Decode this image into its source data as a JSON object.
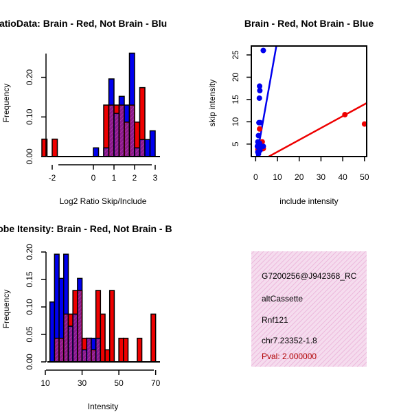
{
  "colors": {
    "red": "#ee0000",
    "blue": "#0000ee",
    "purple": "#8a1a8a",
    "info_bg": "#f5dcee",
    "pval": "#b00000"
  },
  "chart_data": [
    {
      "id": "ratio",
      "type": "bar",
      "title": "RatioData: Brain - Red, Not Brain - Blu",
      "xlabel": "Log2 Ratio Skip/Include",
      "ylabel": "Frequency",
      "xlim": [
        -2.6,
        3.3
      ],
      "ylim": [
        0,
        0.26
      ],
      "xticks": [
        "-2",
        "0",
        "1",
        "2",
        "3"
      ],
      "xtick_values": [
        -2,
        0,
        1,
        2,
        3
      ],
      "yticks": [
        "0.00",
        "0.10",
        "0.20"
      ],
      "ytick_values": [
        0,
        0.1,
        0.2
      ],
      "bin_width": 0.25,
      "series": [
        {
          "name": "Brain",
          "color": "red",
          "bins": [
            [
              -2.5,
              0.044
            ],
            [
              -2.0,
              0.044
            ],
            [
              0.5,
              0.13
            ],
            [
              0.75,
              0.13
            ],
            [
              1.0,
              0.13
            ],
            [
              1.25,
              0.13
            ],
            [
              1.5,
              0.087
            ],
            [
              1.75,
              0.13
            ],
            [
              2.0,
              0.087
            ],
            [
              2.25,
              0.174
            ]
          ]
        },
        {
          "name": "Not Brain",
          "color": "blue",
          "bins": [
            [
              0.0,
              0.022
            ],
            [
              0.5,
              0.022
            ],
            [
              0.75,
              0.196
            ],
            [
              1.0,
              0.109
            ],
            [
              1.25,
              0.152
            ],
            [
              1.5,
              0.13
            ],
            [
              1.75,
              0.261
            ],
            [
              2.0,
              0.022
            ],
            [
              2.25,
              0.043
            ],
            [
              2.5,
              0.043
            ],
            [
              2.75,
              0.065
            ]
          ]
        }
      ]
    },
    {
      "id": "scatter",
      "type": "scatter",
      "title": "Brain - Red, Not Brain - Blue",
      "xlabel": "include intensity",
      "ylabel": "skip intensity",
      "xlim": [
        -2,
        51
      ],
      "ylim": [
        2.2,
        27
      ],
      "xticks": [
        "0",
        "10",
        "20",
        "30",
        "40",
        "50"
      ],
      "xtick_values": [
        0,
        10,
        20,
        30,
        40,
        50
      ],
      "yticks": [
        "5",
        "10",
        "15",
        "20",
        "25"
      ],
      "ytick_values": [
        5,
        10,
        15,
        20,
        25
      ],
      "series": [
        {
          "name": "Brain",
          "color": "red",
          "points": [
            [
              50,
              9.5
            ],
            [
              41,
              11.6
            ],
            [
              1.8,
              8.4
            ],
            [
              3,
              5.5
            ],
            [
              2,
              4.8
            ],
            [
              1.5,
              4.2
            ],
            [
              2.5,
              4.5
            ],
            [
              1,
              3.8
            ],
            [
              3.5,
              4.0
            ]
          ],
          "fit": [
            [
              6,
              2.2
            ],
            [
              51,
              14.2
            ]
          ]
        },
        {
          "name": "Not Brain",
          "color": "blue",
          "points": [
            [
              3.5,
              26
            ],
            [
              1.8,
              18
            ],
            [
              1.9,
              17
            ],
            [
              1.7,
              15.3
            ],
            [
              1.5,
              9.8
            ],
            [
              2.1,
              9.8
            ],
            [
              3.5,
              4.5
            ],
            [
              1.3,
              6.9
            ],
            [
              1.0,
              5.5
            ],
            [
              1.2,
              4.8
            ],
            [
              1.5,
              4.1
            ],
            [
              2.0,
              3.6
            ],
            [
              1.0,
              3.2
            ],
            [
              1.3,
              2.8
            ],
            [
              1.8,
              5.2
            ],
            [
              0.8,
              4.5
            ]
          ],
          "fit": [
            [
              0.5,
              2.2
            ],
            [
              9.5,
              27
            ]
          ]
        }
      ]
    },
    {
      "id": "intensity",
      "type": "bar",
      "title": "Probe Itensity: Brain - Red, Not Brain - B",
      "xlabel": "Intensity",
      "ylabel": "Frequency",
      "xlim": [
        10,
        72
      ],
      "ylim": [
        0,
        0.2
      ],
      "xticks": [
        "10",
        "30",
        "50",
        "70"
      ],
      "xtick_values": [
        10,
        30,
        50,
        70
      ],
      "yticks": [
        "0.00",
        "0.05",
        "0.10",
        "0.15",
        "0.20"
      ],
      "ytick_values": [
        0,
        0.05,
        0.1,
        0.15,
        0.2
      ],
      "bin_width": 2.5,
      "series": [
        {
          "name": "Brain",
          "color": "red",
          "bins": [
            [
              15,
              0.043
            ],
            [
              17.5,
              0.043
            ],
            [
              20,
              0.087
            ],
            [
              22.5,
              0.087
            ],
            [
              25,
              0.13
            ],
            [
              27.5,
              0.13
            ],
            [
              30,
              0.043
            ],
            [
              32.5,
              0.043
            ],
            [
              35,
              0.022
            ],
            [
              37.5,
              0.13
            ],
            [
              40,
              0.087
            ],
            [
              42.5,
              0.022
            ],
            [
              45,
              0.13
            ],
            [
              50,
              0.043
            ],
            [
              52.5,
              0.043
            ],
            [
              60,
              0.043
            ],
            [
              67.5,
              0.087
            ]
          ]
        },
        {
          "name": "Not Brain",
          "color": "blue",
          "bins": [
            [
              12.5,
              0.109
            ],
            [
              15,
              0.196
            ],
            [
              17.5,
              0.152
            ],
            [
              20,
              0.196
            ],
            [
              22.5,
              0.065
            ],
            [
              25,
              0.087
            ],
            [
              27.5,
              0.152
            ],
            [
              30,
              0.022
            ],
            [
              32.5,
              0.043
            ],
            [
              35,
              0.043
            ],
            [
              37.5,
              0.043
            ]
          ]
        }
      ]
    }
  ],
  "info_panel": {
    "probe_id": "G7200256@J942368_RC",
    "event_type": "altCassette",
    "gene": "Rnf121",
    "location": "chr7.23352-1.8",
    "pval": "Pval: 2.000000"
  }
}
